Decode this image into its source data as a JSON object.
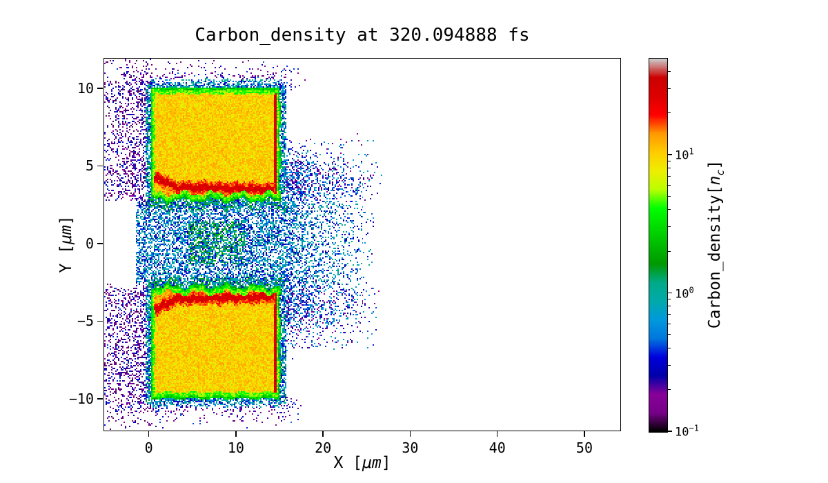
{
  "chart_data": {
    "type": "heatmap",
    "title": "Carbon_density at 320.094888 fs",
    "time_fs": 320.094888,
    "xlabel": "X [μm]",
    "ylabel": "Y [μm]",
    "xlim": [
      -5.2,
      54.2
    ],
    "ylim": [
      -12.1,
      11.96
    ],
    "xticks": [
      0,
      10,
      20,
      30,
      40,
      50
    ],
    "yticks": [
      10,
      5,
      0,
      -5,
      -10
    ],
    "grid": false,
    "legend": false,
    "label_parts": {
      "x_prefix": "X [",
      "x_unit": "μm",
      "x_suffix": "]",
      "y_prefix": "Y [",
      "y_unit": "μm",
      "y_suffix": "]",
      "cb_prefix": "Carbon_density[",
      "cb_var": "n",
      "cb_sub": "c",
      "cb_suffix": "]"
    },
    "colorbar": {
      "label": "Carbon_density[n_c]",
      "scale": "log",
      "vmin": 0.1,
      "vmax": 50,
      "major_ticks": [
        10,
        1,
        0.1
      ],
      "colormap": "nipy_spectral",
      "colormap_stops": [
        "#000000",
        "#770088",
        "#880099",
        "#0000AA",
        "#0000DD",
        "#0077DD",
        "#0099DD",
        "#00AAAA",
        "#00AA88",
        "#009900",
        "#00BB00",
        "#00DD00",
        "#00FF00",
        "#BBFF00",
        "#EEEE00",
        "#FFCC00",
        "#FF9900",
        "#FF0000",
        "#DD0000",
        "#CC0000",
        "#CCCCCC"
      ],
      "position": "right"
    },
    "features": {
      "description": "Two dense carbon foil slabs with shock fronts, surrounded by low-density ablated plasma halo; no data beyond x≈28 μm",
      "slabs": [
        {
          "side": "upper",
          "x_range": [
            0.2,
            15.05
          ],
          "y_range": [
            2.8,
            10.08
          ],
          "interior_density_nc": 9,
          "rim_density_nc": 2.5,
          "shock_front": {
            "y_at_x0": 4.55,
            "y_at_x15": 3.45,
            "density_nc": 30
          },
          "right_edge_front": {
            "x": 14.5,
            "density_nc": 30
          }
        },
        {
          "side": "lower",
          "x_range": [
            0.2,
            15.05
          ],
          "y_range": [
            -10.08,
            -2.8
          ],
          "interior_density_nc": 9,
          "rim_density_nc": 2.5,
          "shock_front": {
            "y_at_x0": -4.55,
            "y_at_x15": -3.45,
            "density_nc": 30
          },
          "right_edge_front": {
            "x": 14.5,
            "density_nc": 30
          }
        }
      ],
      "central_channel_plasma": {
        "x_range": [
          -1.6,
          26.8
        ],
        "y_range": [
          -2.8,
          2.8
        ],
        "density_nc_range": [
          0.25,
          2.4
        ]
      },
      "rear_side_plumes": {
        "x_range": [
          15,
          27
        ],
        "abs_y_center": 3.9,
        "abs_y_sigma": 1.5,
        "density_nc_range": [
          0.18,
          0.9
        ]
      },
      "scattered_halo": {
        "x_range": [
          -5.2,
          27
        ],
        "y_range": [
          -12,
          12
        ],
        "density_nc_range": [
          0.12,
          0.45
        ]
      }
    }
  }
}
